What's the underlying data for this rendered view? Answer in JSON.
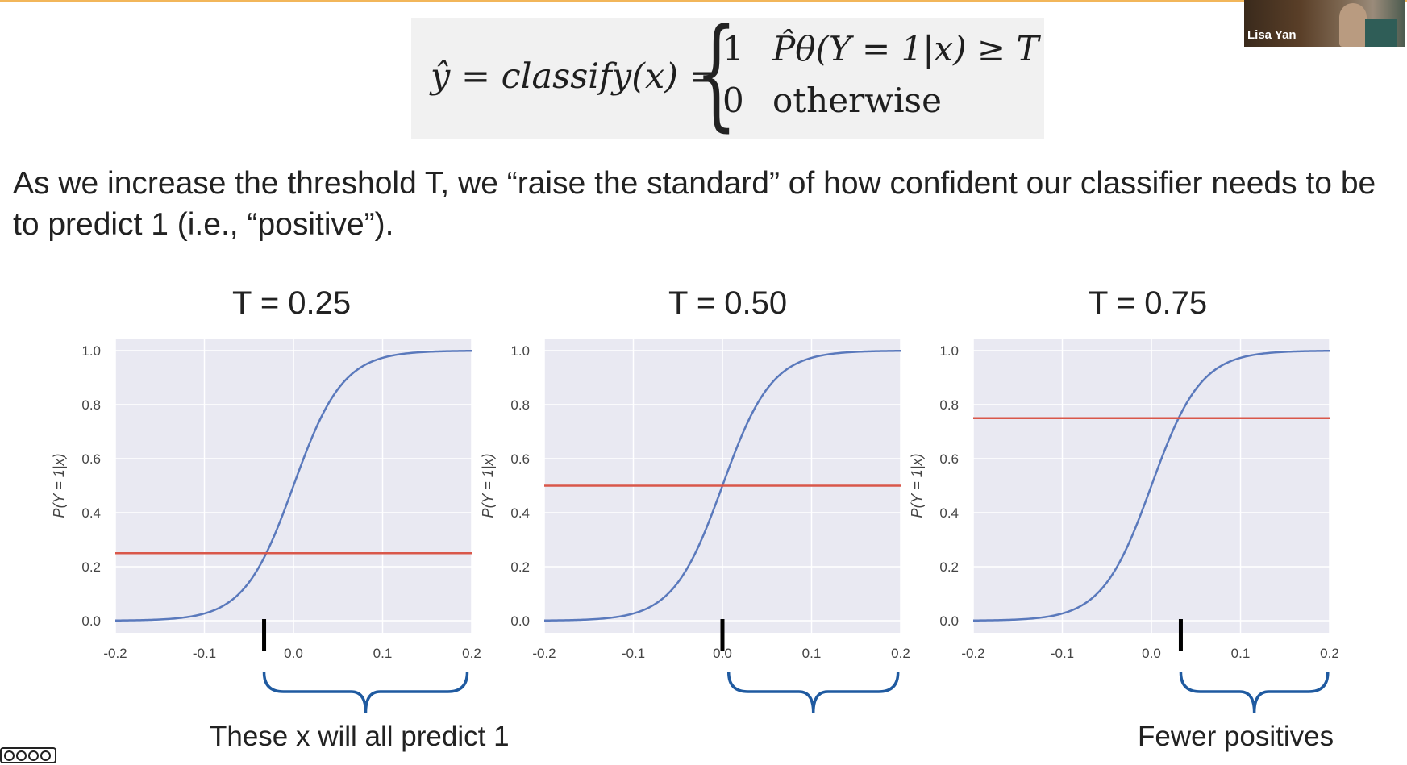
{
  "formula": {
    "lhs": "ŷ = classify(x) =",
    "case1_value": "1",
    "case1_condition": "P̂θ(Y = 1|x) ≥ T",
    "case2_value": "0",
    "case2_condition": "otherwise"
  },
  "intro_text": "As we increase the threshold T, we “raise the standard” of how confident our classifier needs to be to predict 1 (i.e., “positive”).",
  "colors": {
    "curve": "#5a79bc",
    "threshold": "#d9574a",
    "plot_bg": "#e9e9f2",
    "grid": "#ffffff",
    "brace": "#1f5aa0",
    "marker": "#000000"
  },
  "chart_data": [
    {
      "type": "line",
      "title": "T = 0.25",
      "ylabel": "P(Y = 1|x)",
      "xlim": [
        -0.2,
        0.2
      ],
      "ylim": [
        0,
        1
      ],
      "xticks": [
        "-0.2",
        "-0.1",
        "0.0",
        "0.1",
        "0.2"
      ],
      "yticks": [
        "0.0",
        "0.2",
        "0.4",
        "0.6",
        "0.8",
        "1.0"
      ],
      "grid": true,
      "curve": {
        "type": "sigmoid",
        "center": 0.0,
        "steepness": 36
      },
      "threshold": 0.25,
      "marker_x": -0.033,
      "brace": [
        -0.033,
        0.195
      ],
      "annotation": "These x will all predict 1"
    },
    {
      "type": "line",
      "title": "T = 0.50",
      "ylabel": "P(Y = 1|x)",
      "xlim": [
        -0.2,
        0.2
      ],
      "ylim": [
        0,
        1
      ],
      "xticks": [
        "-0.2",
        "-0.1",
        "0.0",
        "0.1",
        "0.2"
      ],
      "yticks": [
        "0.0",
        "0.2",
        "0.4",
        "0.6",
        "0.8",
        "1.0"
      ],
      "grid": true,
      "curve": {
        "type": "sigmoid",
        "center": 0.0,
        "steepness": 36
      },
      "threshold": 0.5,
      "marker_x": 0.0,
      "brace": [
        0.007,
        0.197
      ],
      "annotation": ""
    },
    {
      "type": "line",
      "title": "T = 0.75",
      "ylabel": "P(Y = 1|x)",
      "xlim": [
        -0.2,
        0.2
      ],
      "ylim": [
        0,
        1
      ],
      "xticks": [
        "-0.2",
        "-0.1",
        "0.0",
        "0.1",
        "0.2"
      ],
      "yticks": [
        "0.0",
        "0.2",
        "0.4",
        "0.6",
        "0.8",
        "1.0"
      ],
      "grid": true,
      "curve": {
        "type": "sigmoid",
        "center": 0.0,
        "steepness": 36
      },
      "threshold": 0.75,
      "marker_x": 0.033,
      "brace": [
        0.033,
        0.198
      ],
      "annotation": "Fewer positives"
    }
  ],
  "video": {
    "name": "Lisa Yan"
  }
}
